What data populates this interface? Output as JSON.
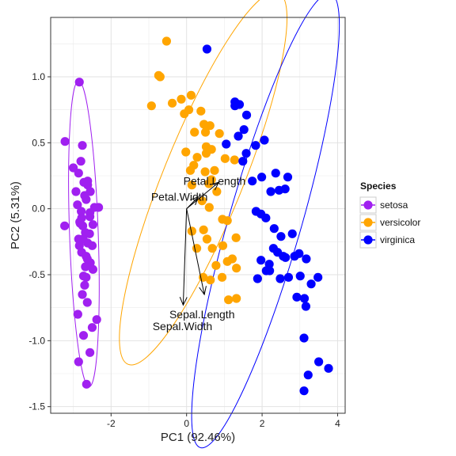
{
  "chart_data": {
    "type": "scatter",
    "xlabel": "PC1 (92.46%)",
    "ylabel": "PC2 (5.31%)",
    "xlim": [
      -3.6,
      4.2
    ],
    "ylim": [
      -1.55,
      1.45
    ],
    "x_ticks": [
      -2,
      0,
      2,
      4
    ],
    "x_tick_labels": [
      "-2",
      "0",
      "2",
      "4"
    ],
    "y_ticks": [
      -1.5,
      -1.0,
      -0.5,
      0.0,
      0.5,
      1.0
    ],
    "y_tick_labels": [
      "-1.5",
      "-1.0",
      "-0.5",
      "0.0",
      "0.5",
      "1.0"
    ],
    "grid": true,
    "legend": {
      "title": "Species",
      "position": "right",
      "entries": [
        "setosa",
        "versicolor",
        "virginica"
      ]
    },
    "colors": {
      "setosa": "#a020f0",
      "versicolor": "#ffa500",
      "virginica": "#0000ff",
      "panel_border": "#333333",
      "grid": "#ebebeb"
    },
    "series": [
      {
        "name": "setosa",
        "color": "#a020f0",
        "x": [
          -2.84,
          -3.22,
          -2.76,
          -3.0,
          -2.86,
          -2.72,
          -2.62,
          -2.93,
          -2.55,
          -2.7,
          -2.66,
          -2.89,
          -2.44,
          -2.79,
          -2.56,
          -2.83,
          -2.48,
          -2.75,
          -2.68,
          -2.57,
          -2.86,
          -2.74,
          -2.62,
          -2.84,
          -2.78,
          -3.23,
          -2.66,
          -2.63,
          -2.55,
          -2.68,
          -2.48,
          -2.73,
          -2.7,
          -2.76,
          -2.63,
          -2.88,
          -2.38,
          -2.5,
          -2.73,
          -2.56,
          -2.86,
          -2.65,
          -2.8,
          -2.56,
          -2.62,
          -2.66,
          -2.33,
          -2.82,
          -2.78,
          -2.5
        ],
        "y": [
          0.96,
          0.51,
          0.48,
          0.31,
          0.27,
          0.2,
          0.18,
          0.13,
          0.13,
          0.1,
          0.07,
          0.03,
          0.01,
          -0.02,
          -0.06,
          -0.1,
          -0.12,
          -0.13,
          -0.18,
          -0.19,
          -0.23,
          -0.23,
          -0.26,
          -0.28,
          -0.33,
          -0.13,
          -0.36,
          -0.38,
          -0.41,
          -0.44,
          -0.46,
          -0.51,
          -0.58,
          -0.65,
          -0.71,
          -0.8,
          -0.84,
          -0.9,
          -0.96,
          -1.09,
          -1.16,
          -1.33,
          0.36,
          -0.03,
          0.21,
          -0.52,
          0.01,
          -0.11,
          -0.07,
          -0.28
        ]
      },
      {
        "name": "versicolor",
        "color": "#ffa500",
        "x": [
          -0.53,
          -0.74,
          -0.7,
          -0.93,
          -0.38,
          -0.14,
          0.06,
          -0.06,
          0.12,
          0.38,
          0.46,
          0.62,
          0.5,
          0.52,
          0.66,
          0.21,
          0.52,
          0.87,
          0.66,
          1.02,
          1.27,
          -0.02,
          0.28,
          0.49,
          0.74,
          0.59,
          0.19,
          0.8,
          0.1,
          0.14,
          0.41,
          0.6,
          0.95,
          1.08,
          0.45,
          0.14,
          0.54,
          0.96,
          1.31,
          0.27,
          0.68,
          1.21,
          0.78,
          1.08,
          1.32,
          0.44,
          0.94,
          1.11,
          0.63,
          1.32
        ],
        "y": [
          1.27,
          1.01,
          1.0,
          0.78,
          0.8,
          0.83,
          0.75,
          0.72,
          0.86,
          0.74,
          0.64,
          0.63,
          0.58,
          0.47,
          0.45,
          0.58,
          0.42,
          0.57,
          0.22,
          0.38,
          0.37,
          0.43,
          0.39,
          0.28,
          0.29,
          0.19,
          0.33,
          0.13,
          0.29,
          0.18,
          0.06,
          0.01,
          -0.08,
          -0.09,
          -0.16,
          -0.17,
          -0.23,
          -0.28,
          -0.22,
          -0.3,
          -0.3,
          -0.38,
          -0.43,
          -0.4,
          -0.45,
          -0.52,
          -0.52,
          -0.69,
          -0.54,
          -0.68
        ]
      },
      {
        "name": "virginica",
        "color": "#0000ff",
        "x": [
          0.54,
          1.28,
          1.28,
          1.4,
          1.59,
          1.52,
          1.37,
          1.05,
          1.58,
          1.83,
          2.06,
          1.49,
          1.99,
          1.74,
          2.36,
          2.61,
          2.23,
          2.45,
          2.68,
          1.84,
          1.97,
          2.1,
          2.32,
          2.8,
          2.5,
          2.41,
          2.3,
          2.86,
          2.2,
          2.11,
          1.88,
          2.48,
          2.98,
          1.97,
          2.19,
          2.62,
          2.56,
          3.17,
          3.48,
          3.3,
          3.16,
          2.92,
          3.12,
          3.01,
          2.7,
          3.22,
          3.11,
          3.76,
          3.5,
          3.11
        ],
        "y": [
          1.21,
          0.81,
          0.78,
          0.79,
          0.71,
          0.6,
          0.55,
          0.49,
          0.42,
          0.48,
          0.52,
          0.36,
          0.24,
          0.21,
          0.27,
          0.15,
          0.13,
          0.14,
          0.24,
          -0.02,
          -0.04,
          -0.07,
          -0.15,
          -0.19,
          -0.21,
          -0.33,
          -0.3,
          -0.36,
          -0.47,
          -0.47,
          -0.53,
          -0.53,
          -0.34,
          -0.39,
          -0.42,
          -0.37,
          -0.36,
          -0.38,
          -0.52,
          -0.57,
          -0.74,
          -0.67,
          -0.68,
          -0.51,
          -0.52,
          -1.26,
          -0.98,
          -1.21,
          -1.16,
          -1.38
        ]
      }
    ],
    "ellipses": [
      {
        "series": "setosa",
        "cx": -2.72,
        "cy": -0.19,
        "rx": 0.38,
        "ry": 1.16,
        "angle_deg": -2
      },
      {
        "series": "versicolor",
        "cx": 0.44,
        "cy": 0.23,
        "rx": 1.06,
        "ry": 1.52,
        "angle_deg": 22
      },
      {
        "series": "virginica",
        "cx": 2.09,
        "cy": -0.09,
        "rx": 0.96,
        "ry": 1.79,
        "angle_deg": 16
      }
    ],
    "arrows": [
      {
        "label": "Petal.Length",
        "x": 0.85,
        "y": 0.2,
        "label_x": 0.74,
        "label_y": 0.21
      },
      {
        "label": "Petal.Width",
        "x": 0.31,
        "y": 0.09,
        "label_x": -0.19,
        "label_y": 0.09
      },
      {
        "label": "Sepal.Length",
        "x": -0.09,
        "y": -0.73,
        "label_x": 0.41,
        "label_y": -0.8
      },
      {
        "label": "Sepal.Width",
        "x": 0.47,
        "y": -0.65,
        "label_x": -0.11,
        "label_y": -0.89
      }
    ]
  }
}
